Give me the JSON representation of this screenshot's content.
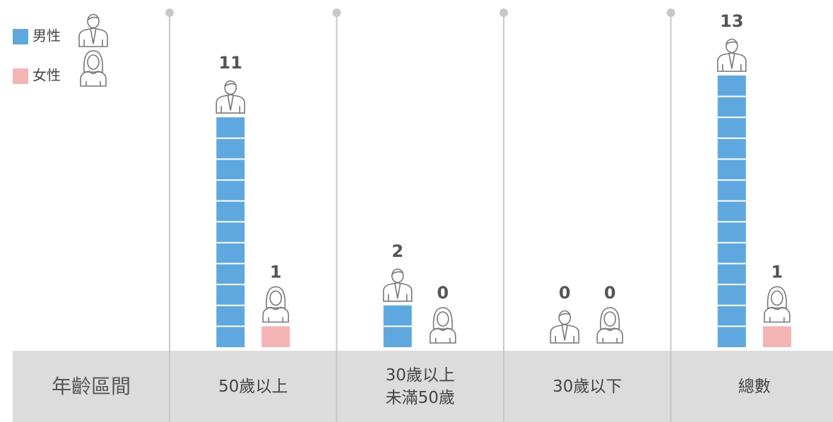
{
  "chart_data": {
    "type": "bar",
    "x_label": "年齡區間",
    "categories": [
      "50歲以上",
      "30歲以上\n未滿50歲",
      "30歲以下",
      "總數"
    ],
    "series": [
      {
        "name": "男性",
        "color": "#5fa8df",
        "values": [
          11,
          2,
          0,
          13
        ]
      },
      {
        "name": "女性",
        "color": "#f4b4b4",
        "values": [
          1,
          0,
          0,
          1
        ]
      }
    ]
  }
}
